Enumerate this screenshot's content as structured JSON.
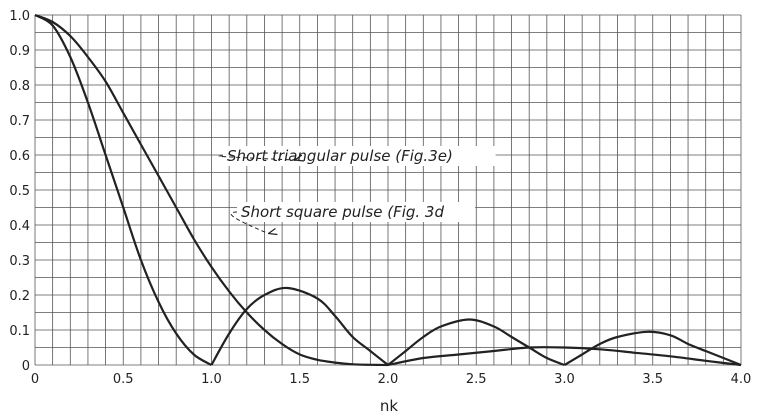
{
  "chart_data": {
    "type": "line",
    "title": "",
    "xlabel": "nk",
    "ylabel": "",
    "xlim": [
      0,
      4.0
    ],
    "ylim": [
      0,
      1.0
    ],
    "grid": true,
    "x_ticks": [
      "0",
      "0.5",
      "1.0",
      "1.5",
      "2.0",
      "2.5",
      "3.0",
      "3.5",
      "4.0"
    ],
    "y_ticks": [
      "0",
      "0.1",
      "0.2",
      "0.3",
      "0.4",
      "0.5",
      "0.6",
      "0.7",
      "0.8",
      "0.9",
      "1.0"
    ],
    "series": [
      {
        "name": "Short triangular pulse (Fig.3e)",
        "x": [
          0,
          0.1,
          0.2,
          0.3,
          0.4,
          0.5,
          0.6,
          0.7,
          0.8,
          0.9,
          1.0,
          1.1,
          1.2,
          1.3,
          1.4,
          1.5,
          1.6,
          1.7,
          1.8,
          1.9,
          2.0,
          2.2,
          2.4,
          2.6,
          2.8,
          3.0,
          3.2,
          3.4,
          3.6,
          3.8,
          4.0
        ],
        "y": [
          1.0,
          0.98,
          0.94,
          0.88,
          0.81,
          0.72,
          0.63,
          0.54,
          0.45,
          0.36,
          0.28,
          0.21,
          0.15,
          0.1,
          0.06,
          0.03,
          0.015,
          0.007,
          0.002,
          0.0005,
          0.0,
          0.02,
          0.03,
          0.04,
          0.05,
          0.05,
          0.045,
          0.035,
          0.025,
          0.012,
          0.0
        ]
      },
      {
        "name": "Short square pulse (Fig. 3d",
        "x": [
          0,
          0.1,
          0.2,
          0.3,
          0.4,
          0.5,
          0.6,
          0.7,
          0.8,
          0.9,
          1.0,
          1.1,
          1.2,
          1.3,
          1.43,
          1.6,
          1.7,
          1.8,
          1.9,
          2.0,
          2.1,
          2.2,
          2.3,
          2.46,
          2.6,
          2.7,
          2.8,
          2.9,
          3.0,
          3.1,
          3.2,
          3.3,
          3.47,
          3.6,
          3.7,
          3.8,
          3.9,
          4.0
        ],
        "y": [
          1.0,
          0.97,
          0.88,
          0.75,
          0.6,
          0.45,
          0.3,
          0.18,
          0.09,
          0.03,
          0.0,
          0.09,
          0.16,
          0.2,
          0.22,
          0.19,
          0.14,
          0.08,
          0.04,
          0.0,
          0.04,
          0.08,
          0.11,
          0.13,
          0.11,
          0.08,
          0.05,
          0.02,
          0.0,
          0.03,
          0.06,
          0.08,
          0.095,
          0.085,
          0.06,
          0.04,
          0.02,
          0.0
        ]
      }
    ],
    "annotations": [
      {
        "text": "Short triangular pulse (Fig.3e)",
        "target": [
          1.45,
          0.58
        ]
      },
      {
        "text": "Short square pulse (Fig. 3d",
        "target": [
          1.3,
          0.37
        ]
      }
    ]
  }
}
